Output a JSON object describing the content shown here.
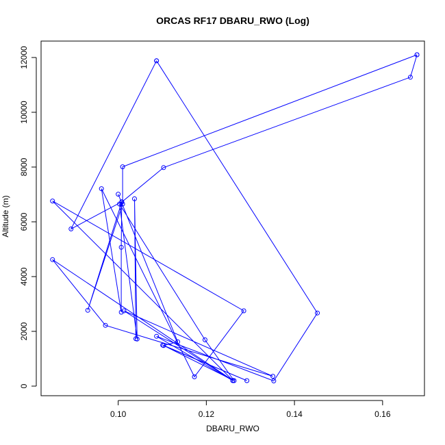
{
  "chart_data": {
    "type": "line",
    "title": "ORCAS RF17 DBARU_RWO (Log)",
    "xlabel": "DBARU_RWO",
    "ylabel": "Altitude (m)",
    "xlim": [
      0.0825,
      0.1695
    ],
    "ylim": [
      -350,
      12600
    ],
    "x_ticks": [
      "0.10",
      "0.12",
      "0.14",
      "0.16"
    ],
    "y_ticks": [
      "0",
      "2000",
      "4000",
      "6000",
      "8000",
      "10000",
      "12000"
    ],
    "grid": false,
    "legend": "none",
    "series": [
      {
        "color": "#0000ff",
        "marker": "open-circle",
        "points": [
          [
            0.1678,
            12100
          ],
          [
            0.1663,
            11280
          ],
          [
            0.1103,
            7980
          ],
          [
            0.1008,
            6720
          ],
          [
            0.0931,
            2770
          ],
          [
            0.101,
            6650
          ],
          [
            0.101,
            8010
          ],
          [
            0.1678,
            12100
          ]
        ]
      },
      {
        "color": "#0000ff",
        "marker": "open-circle",
        "points": [
          [
            0.1087,
            11880
          ],
          [
            0.0893,
            5740
          ],
          [
            0.1008,
            6730
          ],
          [
            0.1007,
            5070
          ],
          [
            0.1007,
            2700
          ],
          [
            0.0962,
            7210
          ],
          [
            0.1173,
            340
          ],
          [
            0.1285,
            2750
          ],
          [
            0.0851,
            6760
          ],
          [
            0.126,
            210
          ],
          [
            0.0851,
            4620
          ],
          [
            0.0971,
            2220
          ],
          [
            0.1351,
            360
          ],
          [
            0.1013,
            2750
          ],
          [
            0.126,
            200
          ],
          [
            0.1087,
            1820
          ],
          [
            0.1353,
            190
          ],
          [
            0.1452,
            2670
          ],
          [
            0.1087,
            11880
          ]
        ]
      },
      {
        "color": "#0000ff",
        "marker": "open-circle",
        "points": [
          [
            0.1,
            7010
          ],
          [
            0.1135,
            1620
          ],
          [
            0.1103,
            1480
          ],
          [
            0.1292,
            200
          ],
          [
            0.1101,
            1500
          ],
          [
            0.1263,
            200
          ],
          [
            0.1197,
            1690
          ],
          [
            0.1003,
            6650
          ],
          [
            0.1043,
            1720
          ],
          [
            0.1037,
            6840
          ],
          [
            0.104,
            1730
          ]
        ]
      }
    ]
  }
}
